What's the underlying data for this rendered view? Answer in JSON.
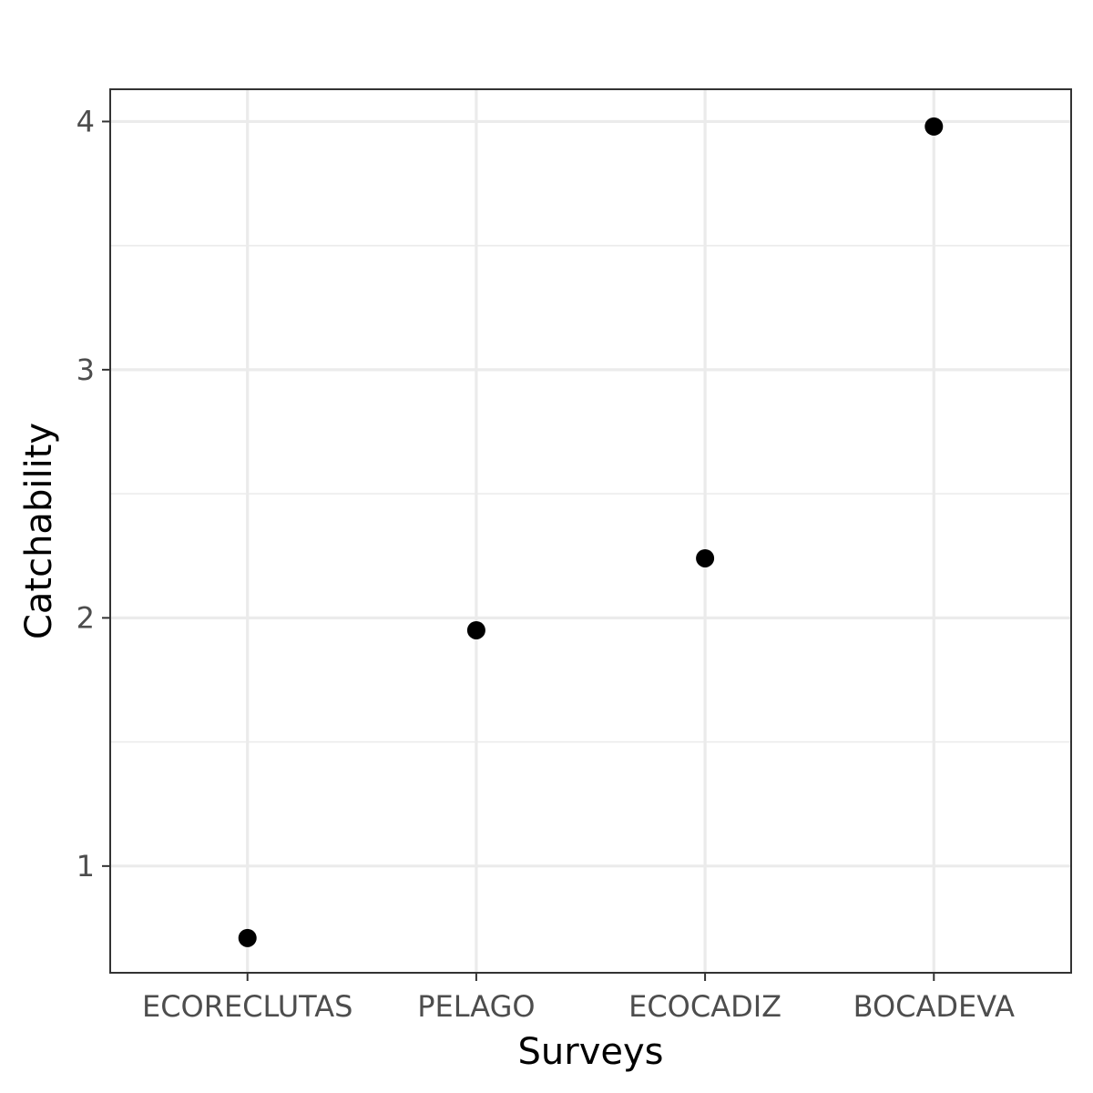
{
  "chart_data": {
    "type": "scatter",
    "title": "",
    "xlabel": "Surveys",
    "ylabel": "Catchability",
    "categories": [
      "ECORECLUTAS",
      "PELAGO",
      "ECOCADIZ",
      "BOCADEVA"
    ],
    "values": [
      0.71,
      1.95,
      2.24,
      3.98
    ],
    "ylim": [
      0.57,
      4.13
    ],
    "y_ticks": [
      1,
      2,
      3,
      4
    ],
    "y_minor_ticks": [
      1.5,
      2.5,
      3.5
    ],
    "grid": true,
    "legend": "none",
    "point_color": "#000000"
  }
}
